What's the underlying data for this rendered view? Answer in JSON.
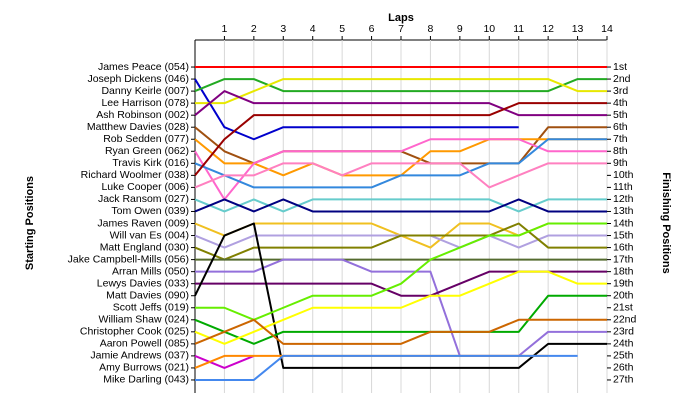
{
  "chart_data": {
    "type": "line",
    "title": "Laps",
    "ylabel": "Starting Positions",
    "y2label": "Finishing Positions",
    "x": [
      0,
      1,
      2,
      3,
      4,
      5,
      6,
      7,
      8,
      9,
      10,
      11,
      12,
      13,
      14
    ],
    "xlim": [
      0,
      14
    ],
    "xticks": [
      1,
      2,
      3,
      4,
      5,
      6,
      7,
      8,
      9,
      10,
      11,
      12,
      13,
      14
    ],
    "ylim": [
      28,
      0
    ],
    "grid": true,
    "y2ticks": [
      {
        "value": 1,
        "label": "1st"
      },
      {
        "value": 2,
        "label": "2nd"
      },
      {
        "value": 3,
        "label": "3rd"
      },
      {
        "value": 4,
        "label": "4th"
      },
      {
        "value": 5,
        "label": "5th"
      },
      {
        "value": 6,
        "label": "6th"
      },
      {
        "value": 7,
        "label": "7th"
      },
      {
        "value": 8,
        "label": "8th"
      },
      {
        "value": 9,
        "label": "9th"
      },
      {
        "value": 10,
        "label": "10th"
      },
      {
        "value": 11,
        "label": "11th"
      },
      {
        "value": 12,
        "label": "12th"
      },
      {
        "value": 13,
        "label": "13th"
      },
      {
        "value": 14,
        "label": "14th"
      },
      {
        "value": 15,
        "label": "15th"
      },
      {
        "value": 16,
        "label": "16th"
      },
      {
        "value": 17,
        "label": "17th"
      },
      {
        "value": 18,
        "label": "18th"
      },
      {
        "value": 19,
        "label": "19th"
      },
      {
        "value": 20,
        "label": "20th"
      },
      {
        "value": 21,
        "label": "21st"
      },
      {
        "value": 22,
        "label": "22nd"
      },
      {
        "value": 23,
        "label": "23rd"
      },
      {
        "value": 24,
        "label": "24th"
      },
      {
        "value": 25,
        "label": "25th"
      },
      {
        "value": 26,
        "label": "26th"
      },
      {
        "value": 27,
        "label": "27th"
      }
    ],
    "series": [
      {
        "name": "James Peace (054)",
        "color": "#ff0000",
        "values": [
          1,
          1,
          1,
          1,
          1,
          1,
          1,
          1,
          1,
          1,
          1,
          1,
          1,
          1,
          1
        ]
      },
      {
        "name": "Joseph Dickens (046)",
        "color": "#0000cc",
        "values": [
          2,
          6,
          7,
          6,
          6,
          6,
          6,
          6,
          6,
          6,
          6,
          6,
          null,
          null,
          null
        ]
      },
      {
        "name": "Danny Keirle (007)",
        "color": "#22aa22",
        "values": [
          3,
          2,
          2,
          3,
          3,
          3,
          3,
          3,
          3,
          3,
          3,
          3,
          3,
          2,
          2
        ]
      },
      {
        "name": "Lee Harrison (078)",
        "color": "#e8e800",
        "values": [
          4,
          4,
          3,
          2,
          2,
          2,
          2,
          2,
          2,
          2,
          2,
          2,
          2,
          3,
          3
        ]
      },
      {
        "name": "Ash Robinson (002)",
        "color": "#800080",
        "values": [
          5,
          3,
          4,
          4,
          4,
          4,
          4,
          4,
          4,
          4,
          4,
          5,
          5,
          5,
          5
        ]
      },
      {
        "name": "Matthew Davies (028)",
        "color": "#a05010",
        "values": [
          6,
          8,
          9,
          8,
          8,
          8,
          8,
          8,
          9,
          9,
          9,
          9,
          6,
          6,
          6
        ]
      },
      {
        "name": "Rob Sedden (077)",
        "color": "#ff9900",
        "values": [
          7,
          9,
          9,
          10,
          9,
          10,
          10,
          10,
          8,
          8,
          7,
          7,
          7,
          7,
          7
        ]
      },
      {
        "name": "Ryan Green (062)",
        "color": "#ff66cc",
        "values": [
          8,
          12,
          9,
          8,
          8,
          8,
          8,
          8,
          7,
          7,
          7,
          7,
          8,
          8,
          8
        ]
      },
      {
        "name": "Travis Kirk (016)",
        "color": "#3388dd",
        "values": [
          9,
          10,
          11,
          11,
          11,
          11,
          11,
          10,
          10,
          10,
          9,
          9,
          7,
          7,
          7
        ]
      },
      {
        "name": "Richard Woolmer (038)",
        "color": "#990000",
        "values": [
          10,
          7,
          5,
          5,
          5,
          5,
          5,
          5,
          5,
          5,
          5,
          4,
          4,
          4,
          4
        ]
      },
      {
        "name": "Luke Cooper (006)",
        "color": "#ff80c0",
        "values": [
          11,
          10,
          10,
          9,
          9,
          10,
          9,
          9,
          9,
          9,
          11,
          10,
          9,
          9,
          9
        ]
      },
      {
        "name": "Jack Ransom (027)",
        "color": "#66cccc",
        "values": [
          12,
          13,
          12,
          13,
          12,
          12,
          12,
          12,
          12,
          12,
          12,
          13,
          12,
          12,
          12
        ]
      },
      {
        "name": "Tom Owen (039)",
        "color": "#000080",
        "values": [
          13,
          12,
          13,
          12,
          13,
          13,
          13,
          13,
          13,
          13,
          13,
          12,
          13,
          13,
          13
        ]
      },
      {
        "name": "James Raven (009)",
        "color": "#f0c020",
        "values": [
          14,
          15,
          14,
          14,
          14,
          14,
          14,
          15,
          16,
          14,
          14,
          15,
          14,
          14,
          14
        ]
      },
      {
        "name": "Will van Es (004)",
        "color": "#b0a0e0",
        "values": [
          15,
          16,
          15,
          15,
          15,
          15,
          15,
          15,
          15,
          16,
          15,
          16,
          15,
          15,
          15
        ]
      },
      {
        "name": "Matt England (030)",
        "color": "#808000",
        "values": [
          16,
          17,
          16,
          16,
          16,
          16,
          16,
          15,
          15,
          15,
          15,
          14,
          16,
          16,
          16
        ]
      },
      {
        "name": "Jake Campbell-Mills (056)",
        "color": "#556b2f",
        "values": [
          17,
          17,
          17,
          17,
          17,
          17,
          17,
          17,
          17,
          17,
          17,
          17,
          17,
          17,
          17
        ]
      },
      {
        "name": "Arran Mills (050)",
        "color": "#9370db",
        "values": [
          18,
          18,
          18,
          17,
          17,
          17,
          18,
          18,
          18,
          25,
          25,
          25,
          23,
          23,
          23
        ]
      },
      {
        "name": "Lewys Davies (033)",
        "color": "#660066",
        "values": [
          19,
          19,
          19,
          19,
          19,
          19,
          19,
          20,
          20,
          19,
          18,
          18,
          18,
          18,
          18
        ]
      },
      {
        "name": "Matt Davies (090)",
        "color": "#000000",
        "values": [
          20,
          15,
          14,
          26,
          26,
          26,
          26,
          26,
          26,
          26,
          26,
          26,
          24,
          24,
          24
        ]
      },
      {
        "name": "Scott Jeffs (019)",
        "color": "#66ee00",
        "values": [
          21,
          21,
          22,
          21,
          20,
          20,
          20,
          19,
          17,
          16,
          15,
          15,
          14,
          14,
          14
        ]
      },
      {
        "name": "William Shaw (024)",
        "color": "#00aa00",
        "values": [
          22,
          23,
          24,
          23,
          23,
          23,
          23,
          23,
          23,
          23,
          23,
          23,
          20,
          20,
          20
        ]
      },
      {
        "name": "Christopher Cook (025)",
        "color": "#ffff00",
        "values": [
          23,
          24,
          23,
          22,
          21,
          21,
          21,
          21,
          20,
          20,
          19,
          18,
          18,
          19,
          19
        ]
      },
      {
        "name": "Aaron Powell (085)",
        "color": "#cc6600",
        "values": [
          24,
          23,
          22,
          24,
          24,
          24,
          24,
          24,
          23,
          23,
          23,
          22,
          22,
          22,
          22
        ]
      },
      {
        "name": "Jamie Andrews (037)",
        "color": "#cc00cc",
        "values": [
          25,
          26,
          25,
          null,
          null,
          null,
          null,
          null,
          null,
          null,
          null,
          null,
          null,
          null,
          null
        ]
      },
      {
        "name": "Amy Burrows (021)",
        "color": "#ff8800",
        "values": [
          26,
          25,
          25,
          25,
          25,
          25,
          25,
          25,
          25,
          25,
          25,
          25,
          25,
          null,
          null
        ]
      },
      {
        "name": "Mike Darling (043)",
        "color": "#4488ee",
        "values": [
          27,
          27,
          27,
          25,
          25,
          25,
          25,
          25,
          25,
          25,
          25,
          25,
          25,
          25,
          null
        ]
      }
    ]
  }
}
